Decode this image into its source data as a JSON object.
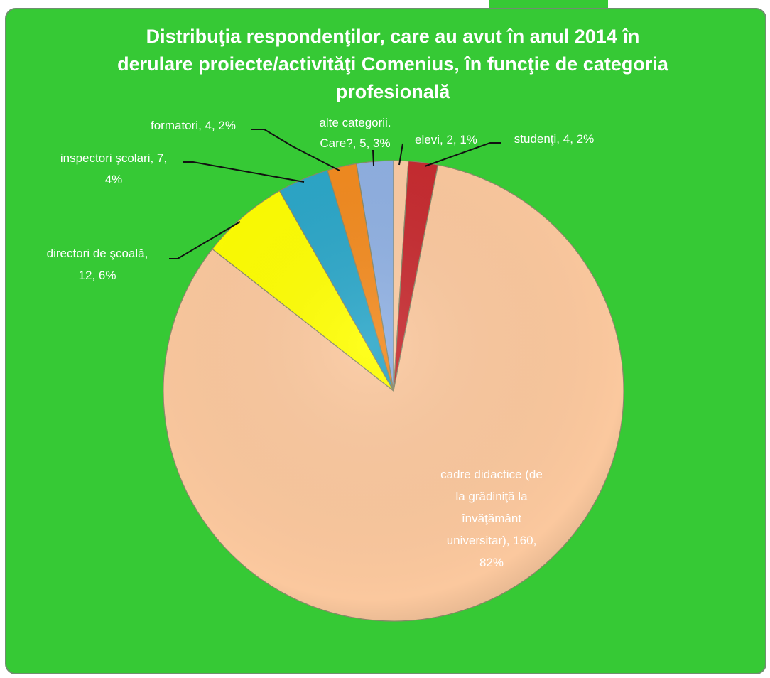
{
  "chart_data": {
    "type": "pie",
    "title": [
      "Distribuţia respondenţilor,  care au avut în anul 2014 în",
      "derulare proiecte/activităţi Comenius, în funcţie  de  categoria",
      "profesională"
    ],
    "values": [
      2,
      4,
      160,
      12,
      7,
      4,
      5
    ],
    "value_labels": [
      [
        "elevi, 2, 1%"
      ],
      [
        "studenţi, 4, 2%"
      ],
      [
        "cadre didactice (de",
        "la grădiniţă la",
        "învăţământ",
        "universitar), 160,",
        "82%"
      ],
      [
        "directori de şcoală,",
        "12, 6%"
      ],
      [
        "inspectori şcolari, 7,",
        "4%"
      ],
      [
        "formatori, 4, 2%"
      ],
      [
        "alte categorii.",
        "Care?, 5, 3%"
      ]
    ],
    "colors": [
      "#fbcba3",
      "#c62a2f",
      "#fbc89e",
      "#ffff00",
      "#2aa6c8",
      "#f28a1e",
      "#8fb0e2"
    ]
  }
}
